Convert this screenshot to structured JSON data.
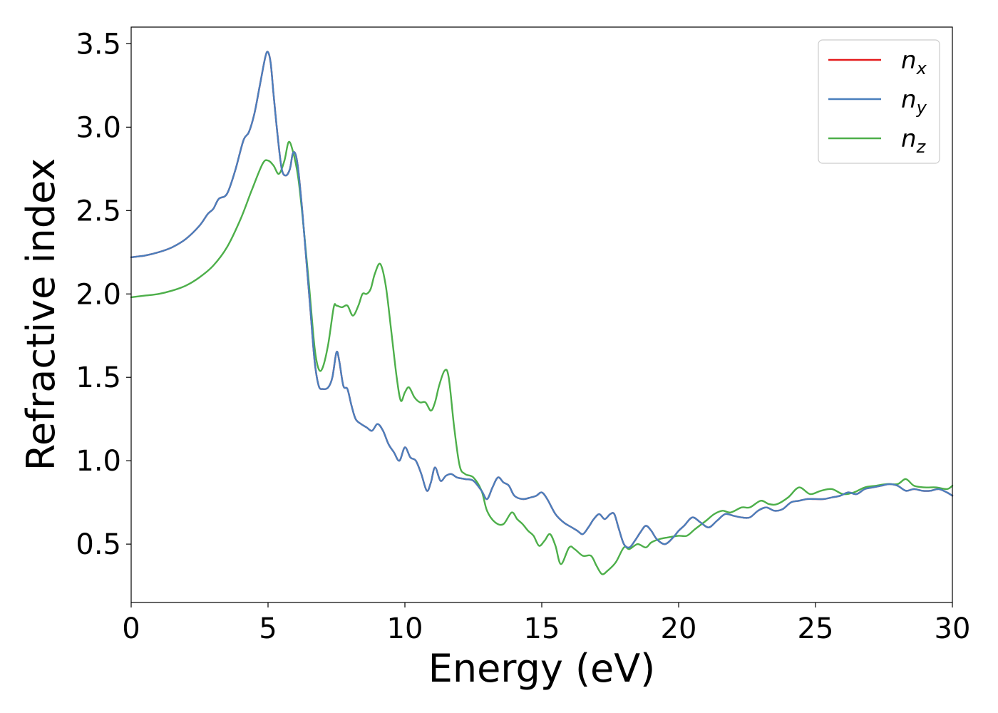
{
  "chart_data": {
    "type": "line",
    "xlabel": "Energy (eV)",
    "ylabel": "Refractive index",
    "xlim": [
      0,
      30
    ],
    "ylim": [
      0.15,
      3.6
    ],
    "xticks": [
      0,
      5,
      10,
      15,
      20,
      25,
      30
    ],
    "yticks": [
      0.5,
      1.0,
      1.5,
      2.0,
      2.5,
      3.0,
      3.5
    ],
    "xtick_labels": [
      "0",
      "5",
      "10",
      "15",
      "20",
      "25",
      "30"
    ],
    "ytick_labels": [
      "0.5",
      "1.0",
      "1.5",
      "2.0",
      "2.5",
      "3.0",
      "3.5"
    ],
    "grid": false,
    "legend_position": "top-right",
    "series": [
      {
        "name": "n_x",
        "label_base": "n",
        "label_sub": "x",
        "color": "#e41a1c",
        "x": [
          0,
          0.5,
          1.0,
          1.5,
          2.0,
          2.5,
          2.8,
          3.0,
          3.2,
          3.5,
          3.8,
          4.1,
          4.3,
          4.5,
          4.7,
          4.9,
          5.0,
          5.1,
          5.2,
          5.35,
          5.5,
          5.65,
          5.8,
          5.9,
          6.0,
          6.1,
          6.25,
          6.4,
          6.55,
          6.7,
          6.85,
          7.0,
          7.2,
          7.35,
          7.5,
          7.6,
          7.75,
          7.9,
          8.05,
          8.2,
          8.4,
          8.6,
          8.8,
          9.0,
          9.2,
          9.4,
          9.6,
          9.8,
          10.0,
          10.2,
          10.4,
          10.6,
          10.8,
          10.95,
          11.1,
          11.3,
          11.5,
          11.7,
          11.9,
          12.2,
          12.5,
          12.8,
          13.0,
          13.2,
          13.4,
          13.6,
          13.8,
          14.0,
          14.3,
          14.6,
          14.8,
          15.0,
          15.2,
          15.5,
          15.8,
          16.1,
          16.3,
          16.5,
          16.7,
          16.9,
          17.1,
          17.3,
          17.5,
          17.65,
          17.8,
          18.0,
          18.2,
          18.4,
          18.6,
          18.8,
          19.0,
          19.2,
          19.5,
          19.8,
          20.0,
          20.2,
          20.5,
          20.8,
          21.1,
          21.4,
          21.7,
          22.0,
          22.3,
          22.6,
          22.9,
          23.2,
          23.5,
          23.8,
          24.1,
          24.4,
          24.7,
          25.0,
          25.3,
          25.6,
          25.9,
          26.2,
          26.5,
          26.8,
          27.1,
          27.4,
          27.7,
          28.0,
          28.3,
          28.6,
          28.9,
          29.2,
          29.5,
          29.8,
          30.0
        ],
        "y": [
          2.22,
          2.23,
          2.25,
          2.28,
          2.33,
          2.41,
          2.48,
          2.51,
          2.57,
          2.6,
          2.74,
          2.92,
          2.97,
          3.08,
          3.25,
          3.42,
          3.45,
          3.38,
          3.2,
          2.95,
          2.75,
          2.71,
          2.75,
          2.84,
          2.84,
          2.75,
          2.5,
          2.2,
          1.9,
          1.6,
          1.45,
          1.43,
          1.44,
          1.5,
          1.65,
          1.6,
          1.45,
          1.43,
          1.33,
          1.25,
          1.22,
          1.2,
          1.18,
          1.22,
          1.18,
          1.1,
          1.05,
          1.0,
          1.08,
          1.02,
          1.0,
          0.92,
          0.82,
          0.87,
          0.96,
          0.88,
          0.91,
          0.92,
          0.9,
          0.89,
          0.88,
          0.82,
          0.77,
          0.84,
          0.9,
          0.87,
          0.85,
          0.79,
          0.77,
          0.78,
          0.79,
          0.81,
          0.77,
          0.68,
          0.63,
          0.6,
          0.58,
          0.56,
          0.6,
          0.65,
          0.68,
          0.65,
          0.68,
          0.68,
          0.6,
          0.5,
          0.48,
          0.52,
          0.57,
          0.61,
          0.58,
          0.53,
          0.5,
          0.54,
          0.58,
          0.61,
          0.66,
          0.63,
          0.6,
          0.64,
          0.68,
          0.67,
          0.66,
          0.66,
          0.7,
          0.72,
          0.7,
          0.71,
          0.75,
          0.76,
          0.77,
          0.77,
          0.77,
          0.78,
          0.79,
          0.81,
          0.8,
          0.83,
          0.84,
          0.85,
          0.86,
          0.85,
          0.82,
          0.83,
          0.82,
          0.82,
          0.83,
          0.81,
          0.79
        ]
      },
      {
        "name": "n_y",
        "label_base": "n",
        "label_sub": "y",
        "color": "#4a7fbd",
        "x": [
          0,
          0.5,
          1.0,
          1.5,
          2.0,
          2.5,
          2.8,
          3.0,
          3.2,
          3.5,
          3.8,
          4.1,
          4.3,
          4.5,
          4.7,
          4.9,
          5.0,
          5.1,
          5.2,
          5.35,
          5.5,
          5.65,
          5.8,
          5.9,
          6.0,
          6.1,
          6.25,
          6.4,
          6.55,
          6.7,
          6.85,
          7.0,
          7.2,
          7.35,
          7.5,
          7.6,
          7.75,
          7.9,
          8.05,
          8.2,
          8.4,
          8.6,
          8.8,
          9.0,
          9.2,
          9.4,
          9.6,
          9.8,
          10.0,
          10.2,
          10.4,
          10.6,
          10.8,
          10.95,
          11.1,
          11.3,
          11.5,
          11.7,
          11.9,
          12.2,
          12.5,
          12.8,
          13.0,
          13.2,
          13.4,
          13.6,
          13.8,
          14.0,
          14.3,
          14.6,
          14.8,
          15.0,
          15.2,
          15.5,
          15.8,
          16.1,
          16.3,
          16.5,
          16.7,
          16.9,
          17.1,
          17.3,
          17.5,
          17.65,
          17.8,
          18.0,
          18.2,
          18.4,
          18.6,
          18.8,
          19.0,
          19.2,
          19.5,
          19.8,
          20.0,
          20.2,
          20.5,
          20.8,
          21.1,
          21.4,
          21.7,
          22.0,
          22.3,
          22.6,
          22.9,
          23.2,
          23.5,
          23.8,
          24.1,
          24.4,
          24.7,
          25.0,
          25.3,
          25.6,
          25.9,
          26.2,
          26.5,
          26.8,
          27.1,
          27.4,
          27.7,
          28.0,
          28.3,
          28.6,
          28.9,
          29.2,
          29.5,
          29.8,
          30.0
        ],
        "y": [
          2.22,
          2.23,
          2.25,
          2.28,
          2.33,
          2.41,
          2.48,
          2.51,
          2.57,
          2.6,
          2.74,
          2.92,
          2.97,
          3.08,
          3.25,
          3.42,
          3.45,
          3.38,
          3.2,
          2.95,
          2.75,
          2.71,
          2.75,
          2.84,
          2.84,
          2.75,
          2.5,
          2.2,
          1.9,
          1.6,
          1.45,
          1.43,
          1.44,
          1.5,
          1.65,
          1.6,
          1.45,
          1.43,
          1.33,
          1.25,
          1.22,
          1.2,
          1.18,
          1.22,
          1.18,
          1.1,
          1.05,
          1.0,
          1.08,
          1.02,
          1.0,
          0.92,
          0.82,
          0.87,
          0.96,
          0.88,
          0.91,
          0.92,
          0.9,
          0.89,
          0.88,
          0.82,
          0.77,
          0.84,
          0.9,
          0.87,
          0.85,
          0.79,
          0.77,
          0.78,
          0.79,
          0.81,
          0.77,
          0.68,
          0.63,
          0.6,
          0.58,
          0.56,
          0.6,
          0.65,
          0.68,
          0.65,
          0.68,
          0.68,
          0.6,
          0.5,
          0.48,
          0.52,
          0.57,
          0.61,
          0.58,
          0.53,
          0.5,
          0.54,
          0.58,
          0.61,
          0.66,
          0.63,
          0.6,
          0.64,
          0.68,
          0.67,
          0.66,
          0.66,
          0.7,
          0.72,
          0.7,
          0.71,
          0.75,
          0.76,
          0.77,
          0.77,
          0.77,
          0.78,
          0.79,
          0.81,
          0.8,
          0.83,
          0.84,
          0.85,
          0.86,
          0.85,
          0.82,
          0.83,
          0.82,
          0.82,
          0.83,
          0.81,
          0.79
        ]
      },
      {
        "name": "n_z",
        "label_base": "n",
        "label_sub": "z",
        "color": "#4daf4a",
        "x": [
          0,
          0.5,
          1.0,
          1.5,
          2.0,
          2.5,
          3.0,
          3.5,
          4.0,
          4.4,
          4.8,
          5.0,
          5.2,
          5.4,
          5.6,
          5.75,
          5.9,
          6.1,
          6.3,
          6.5,
          6.7,
          6.85,
          7.0,
          7.2,
          7.4,
          7.5,
          7.7,
          7.9,
          8.1,
          8.3,
          8.45,
          8.6,
          8.75,
          8.9,
          9.1,
          9.3,
          9.5,
          9.7,
          9.85,
          10.0,
          10.15,
          10.35,
          10.55,
          10.75,
          10.95,
          11.1,
          11.25,
          11.45,
          11.6,
          11.8,
          12.0,
          12.2,
          12.5,
          12.8,
          13.0,
          13.3,
          13.6,
          13.9,
          14.1,
          14.3,
          14.5,
          14.7,
          14.9,
          15.1,
          15.3,
          15.5,
          15.7,
          16.0,
          16.2,
          16.5,
          16.8,
          17.0,
          17.2,
          17.4,
          17.7,
          18.0,
          18.2,
          18.5,
          18.8,
          19.0,
          19.3,
          19.6,
          20.0,
          20.3,
          20.6,
          21.0,
          21.3,
          21.6,
          21.9,
          22.3,
          22.6,
          23.0,
          23.3,
          23.6,
          24.0,
          24.4,
          24.8,
          25.2,
          25.6,
          26.0,
          26.4,
          26.8,
          27.2,
          27.6,
          28.0,
          28.3,
          28.6,
          29.0,
          29.4,
          29.8,
          30.0
        ],
        "y": [
          1.98,
          1.99,
          2.0,
          2.02,
          2.05,
          2.1,
          2.17,
          2.28,
          2.45,
          2.62,
          2.78,
          2.8,
          2.77,
          2.72,
          2.8,
          2.91,
          2.86,
          2.7,
          2.4,
          2.05,
          1.68,
          1.55,
          1.56,
          1.7,
          1.92,
          1.93,
          1.92,
          1.93,
          1.87,
          1.93,
          2.0,
          2.0,
          2.03,
          2.12,
          2.18,
          2.05,
          1.78,
          1.5,
          1.36,
          1.41,
          1.44,
          1.38,
          1.35,
          1.35,
          1.3,
          1.35,
          1.45,
          1.54,
          1.5,
          1.2,
          0.97,
          0.92,
          0.9,
          0.82,
          0.7,
          0.63,
          0.62,
          0.69,
          0.65,
          0.62,
          0.58,
          0.55,
          0.49,
          0.52,
          0.56,
          0.49,
          0.38,
          0.48,
          0.47,
          0.43,
          0.43,
          0.37,
          0.32,
          0.34,
          0.39,
          0.48,
          0.47,
          0.5,
          0.48,
          0.51,
          0.53,
          0.54,
          0.55,
          0.55,
          0.59,
          0.64,
          0.68,
          0.7,
          0.69,
          0.72,
          0.72,
          0.76,
          0.74,
          0.74,
          0.78,
          0.84,
          0.8,
          0.82,
          0.83,
          0.8,
          0.81,
          0.84,
          0.85,
          0.86,
          0.86,
          0.89,
          0.85,
          0.84,
          0.84,
          0.83,
          0.85
        ]
      }
    ]
  }
}
